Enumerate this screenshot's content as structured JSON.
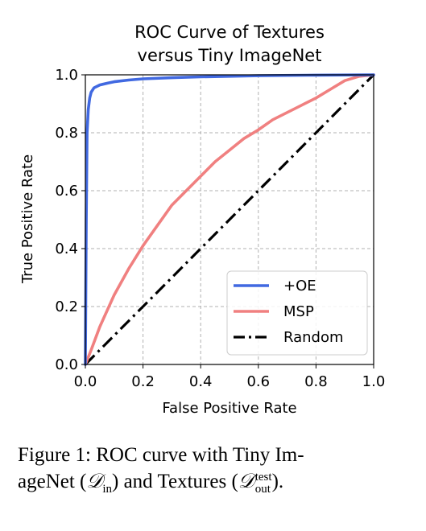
{
  "chart_data": {
    "type": "line",
    "title": [
      "ROC Curve of Textures",
      "versus Tiny ImageNet"
    ],
    "xlabel": "False Positive Rate",
    "ylabel": "True Positive Rate",
    "xlim": [
      0.0,
      1.0
    ],
    "ylim": [
      0.0,
      1.0
    ],
    "xticks": [
      "0.0",
      "0.2",
      "0.4",
      "0.6",
      "0.8",
      "1.0"
    ],
    "yticks": [
      "0.0",
      "0.2",
      "0.4",
      "0.6",
      "0.8",
      "1.0"
    ],
    "grid": true,
    "legend_position": "bottom-right",
    "series": [
      {
        "name": "+OE",
        "color": "#4169e1",
        "style": "solid",
        "x": [
          0.0,
          0.003,
          0.006,
          0.01,
          0.015,
          0.02,
          0.03,
          0.05,
          0.08,
          0.1,
          0.15,
          0.2,
          0.3,
          0.4,
          0.5,
          0.6,
          0.8,
          1.0
        ],
        "y": [
          0.0,
          0.5,
          0.8,
          0.88,
          0.92,
          0.94,
          0.955,
          0.965,
          0.972,
          0.976,
          0.982,
          0.986,
          0.99,
          0.993,
          0.995,
          0.997,
          0.999,
          1.0
        ]
      },
      {
        "name": "MSP",
        "color": "#f08080",
        "style": "solid",
        "x": [
          0.0,
          0.02,
          0.05,
          0.1,
          0.15,
          0.2,
          0.25,
          0.3,
          0.35,
          0.4,
          0.45,
          0.5,
          0.55,
          0.6,
          0.65,
          0.7,
          0.75,
          0.8,
          0.85,
          0.9,
          0.95,
          1.0
        ],
        "y": [
          0.0,
          0.05,
          0.13,
          0.24,
          0.33,
          0.41,
          0.48,
          0.55,
          0.6,
          0.65,
          0.7,
          0.74,
          0.78,
          0.81,
          0.845,
          0.87,
          0.895,
          0.92,
          0.95,
          0.98,
          0.995,
          1.0
        ]
      },
      {
        "name": "Random",
        "color": "#000000",
        "style": "dashdot",
        "x": [
          0.0,
          1.0
        ],
        "y": [
          0.0,
          1.0
        ]
      }
    ]
  },
  "caption": {
    "lead": "Figure 1: ROC curve with Tiny Im-",
    "line2_a": "ageNet (",
    "d_in_symbol": "𝒟",
    "d_in_sub": "in",
    "line2_b": ") and Textures (",
    "d_out_symbol": "𝒟",
    "d_out_sup": "test",
    "d_out_sub": "out",
    "line2_c": ")."
  }
}
